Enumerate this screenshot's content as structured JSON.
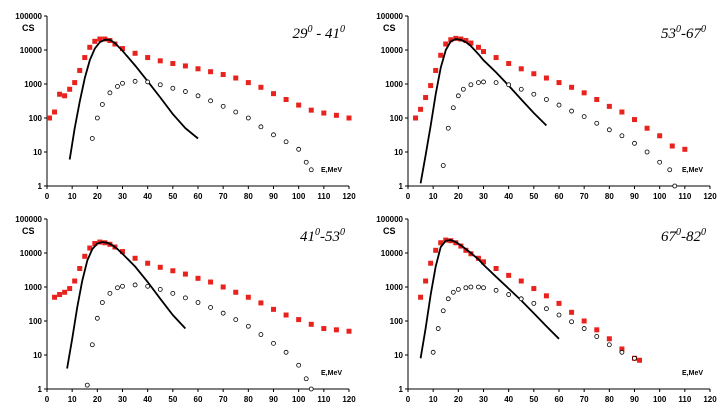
{
  "chart_data": [
    {
      "type": "scatter",
      "title": "29 0 - 41 0",
      "title_parts": [
        "29",
        "0",
        " - 41",
        "0"
      ],
      "ylabel": "CS",
      "xlabel": "E,MeV",
      "yscale": "log",
      "xlim": [
        0,
        120
      ],
      "ylim": [
        1,
        100000
      ],
      "xticks": [
        "0",
        "10",
        "20",
        "30",
        "40",
        "50",
        "60",
        "70",
        "80",
        "90",
        "100",
        "110",
        "120"
      ],
      "yticks": [
        "1",
        "10",
        "100",
        "1000",
        "10000",
        "100000"
      ],
      "grid": false,
      "series": [
        {
          "marker": "red-square",
          "color": "#e8231e",
          "x": [
            1,
            3,
            5,
            7,
            9,
            11,
            13,
            15,
            17,
            19,
            21,
            23,
            25,
            27,
            30,
            35,
            40,
            45,
            50,
            55,
            60,
            65,
            70,
            75,
            80,
            85,
            90,
            95,
            100,
            105,
            110,
            115,
            120
          ],
          "y": [
            100,
            150,
            500,
            450,
            700,
            1100,
            2500,
            6000,
            12000,
            18000,
            21000,
            21000,
            19000,
            15000,
            11000,
            8000,
            6000,
            4800,
            4000,
            3400,
            2800,
            2300,
            1900,
            1500,
            1100,
            800,
            520,
            350,
            240,
            170,
            140,
            120,
            100
          ]
        },
        {
          "marker": "black-line",
          "color": "#000000",
          "x": [
            9,
            11,
            13,
            15,
            17,
            19,
            21,
            23,
            25,
            27,
            30,
            35,
            40,
            45,
            50,
            55,
            60
          ],
          "y": [
            6,
            50,
            300,
            1500,
            5000,
            11000,
            17000,
            20000,
            20000,
            16000,
            9500,
            3500,
            1200,
            400,
            130,
            50,
            25
          ]
        },
        {
          "marker": "open-circle",
          "color": "#000000",
          "x": [
            18,
            20,
            22,
            25,
            28,
            30,
            35,
            40,
            45,
            50,
            55,
            60,
            65,
            70,
            75,
            80,
            85,
            90,
            95,
            100,
            103,
            105
          ],
          "y": [
            25,
            100,
            250,
            550,
            850,
            1050,
            1200,
            1150,
            950,
            750,
            600,
            450,
            320,
            220,
            150,
            100,
            55,
            32,
            20,
            12,
            5,
            3
          ]
        }
      ]
    },
    {
      "type": "scatter",
      "title": "53 0 -67 0",
      "title_parts": [
        "53",
        "0",
        "-67",
        "0"
      ],
      "ylabel": "CS",
      "xlabel": "E,MeV",
      "yscale": "log",
      "xlim": [
        0,
        120
      ],
      "ylim": [
        1,
        100000
      ],
      "xticks": [
        "0",
        "10",
        "20",
        "30",
        "40",
        "50",
        "60",
        "70",
        "80",
        "90",
        "100",
        "110",
        "120"
      ],
      "yticks": [
        "1",
        "10",
        "100",
        "1000",
        "10000",
        "100000"
      ],
      "grid": false,
      "series": [
        {
          "marker": "red-square",
          "color": "#e8231e",
          "x": [
            3,
            5,
            7,
            9,
            11,
            13,
            15,
            17,
            19,
            21,
            23,
            25,
            28,
            30,
            35,
            40,
            45,
            50,
            55,
            60,
            65,
            70,
            75,
            80,
            85,
            90,
            95,
            100,
            105,
            110
          ],
          "y": [
            100,
            180,
            400,
            900,
            2500,
            7000,
            15000,
            20000,
            22000,
            21000,
            19000,
            16000,
            12000,
            9000,
            6000,
            4000,
            2800,
            2000,
            1500,
            1100,
            800,
            550,
            350,
            220,
            150,
            90,
            50,
            30,
            15,
            12
          ]
        },
        {
          "marker": "black-line",
          "color": "#000000",
          "x": [
            5,
            7,
            9,
            11,
            13,
            15,
            17,
            19,
            21,
            23,
            25,
            28,
            30,
            35,
            40,
            45,
            50,
            55
          ],
          "y": [
            1.2,
            8,
            60,
            500,
            3000,
            10000,
            18000,
            21000,
            20000,
            17000,
            13000,
            7500,
            5000,
            2200,
            900,
            350,
            140,
            60
          ]
        },
        {
          "marker": "open-circle",
          "color": "#000000",
          "x": [
            14,
            16,
            18,
            20,
            22,
            25,
            28,
            30,
            35,
            40,
            45,
            50,
            55,
            60,
            65,
            70,
            75,
            80,
            85,
            90,
            95,
            100,
            104,
            106
          ],
          "y": [
            4,
            50,
            200,
            450,
            700,
            950,
            1100,
            1150,
            1100,
            950,
            700,
            500,
            350,
            240,
            160,
            110,
            70,
            45,
            30,
            18,
            10,
            5,
            3,
            1
          ]
        }
      ]
    },
    {
      "type": "scatter",
      "title": "41 0 -53 0",
      "title_parts": [
        "41",
        "0",
        "-53",
        "0"
      ],
      "ylabel": "CS",
      "xlabel": "E,MeV",
      "yscale": "log",
      "xlim": [
        0,
        120
      ],
      "ylim": [
        1,
        100000
      ],
      "xticks": [
        "0",
        "10",
        "20",
        "30",
        "40",
        "50",
        "60",
        "70",
        "80",
        "90",
        "100",
        "110",
        "120"
      ],
      "yticks": [
        "1",
        "10",
        "100",
        "1000",
        "10000",
        "100000"
      ],
      "grid": false,
      "series": [
        {
          "marker": "red-square",
          "color": "#e8231e",
          "x": [
            3,
            5,
            7,
            9,
            11,
            13,
            15,
            17,
            19,
            21,
            23,
            25,
            27,
            30,
            35,
            40,
            45,
            50,
            55,
            60,
            65,
            70,
            75,
            80,
            85,
            90,
            95,
            100,
            105,
            110,
            115,
            120
          ],
          "y": [
            500,
            600,
            700,
            900,
            1500,
            3500,
            8000,
            14000,
            19000,
            21000,
            20000,
            18000,
            15000,
            11000,
            7000,
            5000,
            3800,
            3000,
            2400,
            1800,
            1400,
            1000,
            700,
            500,
            340,
            220,
            150,
            110,
            80,
            60,
            55,
            50
          ]
        },
        {
          "marker": "black-line",
          "color": "#000000",
          "x": [
            8,
            10,
            12,
            14,
            16,
            18,
            20,
            22,
            24,
            26,
            28,
            30,
            35,
            40,
            45,
            50,
            55
          ],
          "y": [
            4,
            30,
            250,
            1500,
            6000,
            13000,
            19000,
            21000,
            20000,
            17000,
            13000,
            9500,
            4000,
            1400,
            450,
            150,
            60
          ]
        },
        {
          "marker": "open-circle",
          "color": "#000000",
          "x": [
            16,
            18,
            20,
            22,
            25,
            28,
            30,
            35,
            40,
            45,
            50,
            55,
            60,
            65,
            70,
            75,
            80,
            85,
            90,
            95,
            100,
            103,
            105
          ],
          "y": [
            1.3,
            20,
            120,
            350,
            650,
            950,
            1050,
            1150,
            1050,
            850,
            650,
            480,
            350,
            250,
            170,
            110,
            70,
            40,
            22,
            12,
            5,
            2,
            1
          ]
        }
      ]
    },
    {
      "type": "scatter",
      "title": "67 0 -82 0",
      "title_parts": [
        "67",
        "0",
        "-82",
        "0"
      ],
      "ylabel": "CS",
      "xlabel": "E,MeV",
      "yscale": "log",
      "xlim": [
        0,
        120
      ],
      "ylim": [
        1,
        100000
      ],
      "xticks": [
        "0",
        "10",
        "20",
        "30",
        "40",
        "50",
        "60",
        "70",
        "80",
        "90",
        "100",
        "110",
        "120"
      ],
      "yticks": [
        "1",
        "10",
        "100",
        "1000",
        "10000",
        "100000"
      ],
      "grid": false,
      "series": [
        {
          "marker": "red-square",
          "color": "#e8231e",
          "x": [
            5,
            7,
            9,
            11,
            13,
            15,
            17,
            19,
            21,
            23,
            25,
            28,
            30,
            35,
            40,
            45,
            50,
            55,
            60,
            65,
            70,
            75,
            80,
            85,
            90,
            92
          ],
          "y": [
            500,
            1500,
            5000,
            12000,
            20000,
            24000,
            23000,
            20000,
            16000,
            12000,
            9500,
            7000,
            5500,
            3500,
            2200,
            1500,
            900,
            550,
            330,
            180,
            100,
            55,
            30,
            15,
            8,
            7
          ]
        },
        {
          "marker": "black-line",
          "color": "#000000",
          "x": [
            5,
            7,
            9,
            11,
            13,
            15,
            17,
            19,
            21,
            23,
            25,
            28,
            30,
            35,
            40,
            45,
            50,
            55,
            60
          ],
          "y": [
            8,
            60,
            600,
            4000,
            15000,
            23000,
            24000,
            21000,
            17000,
            13000,
            10000,
            6500,
            4500,
            2000,
            900,
            400,
            170,
            70,
            30
          ]
        },
        {
          "marker": "open-circle",
          "color": "#000000",
          "x": [
            10,
            12,
            14,
            16,
            18,
            20,
            23,
            25,
            28,
            30,
            35,
            40,
            45,
            50,
            55,
            60,
            65,
            70,
            75,
            80,
            85,
            90
          ],
          "y": [
            12,
            60,
            200,
            450,
            700,
            850,
            950,
            1000,
            1000,
            950,
            800,
            600,
            450,
            330,
            230,
            150,
            95,
            60,
            35,
            20,
            12,
            8
          ]
        }
      ]
    }
  ]
}
